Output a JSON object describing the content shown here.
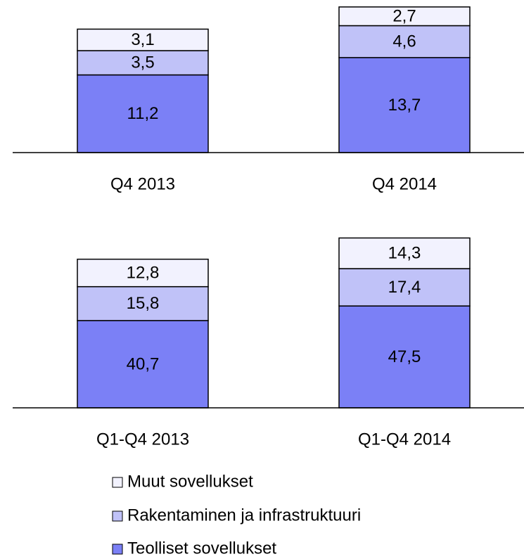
{
  "chart_data": [
    {
      "type": "stacked_bar",
      "categories": [
        "Q4 2013",
        "Q4 2014"
      ],
      "ylim": [
        0,
        22
      ],
      "series": [
        {
          "name": "Teolliset sovellukset",
          "color": "#7b80f6",
          "values": [
            11.2,
            13.7
          ],
          "value_labels": [
            "11,2",
            "13,7"
          ]
        },
        {
          "name": "Rakentaminen ja infrastruktuuri",
          "color": "#c0c2f8",
          "values": [
            3.5,
            4.6
          ],
          "value_labels": [
            "3,5",
            "4,6"
          ]
        },
        {
          "name": "Muut sovellukset",
          "color": "#f2f2fe",
          "values": [
            3.1,
            2.7
          ],
          "value_labels": [
            "3,1",
            "2,7"
          ]
        }
      ]
    },
    {
      "type": "stacked_bar",
      "categories": [
        "Q1-Q4 2013",
        "Q1-Q4 2014"
      ],
      "ylim": [
        0,
        80
      ],
      "series": [
        {
          "name": "Teolliset sovellukset",
          "color": "#7b80f6",
          "values": [
            40.7,
            47.5
          ],
          "value_labels": [
            "40,7",
            "47,5"
          ]
        },
        {
          "name": "Rakentaminen ja infrastruktuuri",
          "color": "#c0c2f8",
          "values": [
            15.8,
            17.4
          ],
          "value_labels": [
            "15,8",
            "17,4"
          ]
        },
        {
          "name": "Muut sovellukset",
          "color": "#f2f2fe",
          "values": [
            12.8,
            14.3
          ],
          "value_labels": [
            "12,8",
            "14,3"
          ]
        }
      ]
    }
  ]
}
